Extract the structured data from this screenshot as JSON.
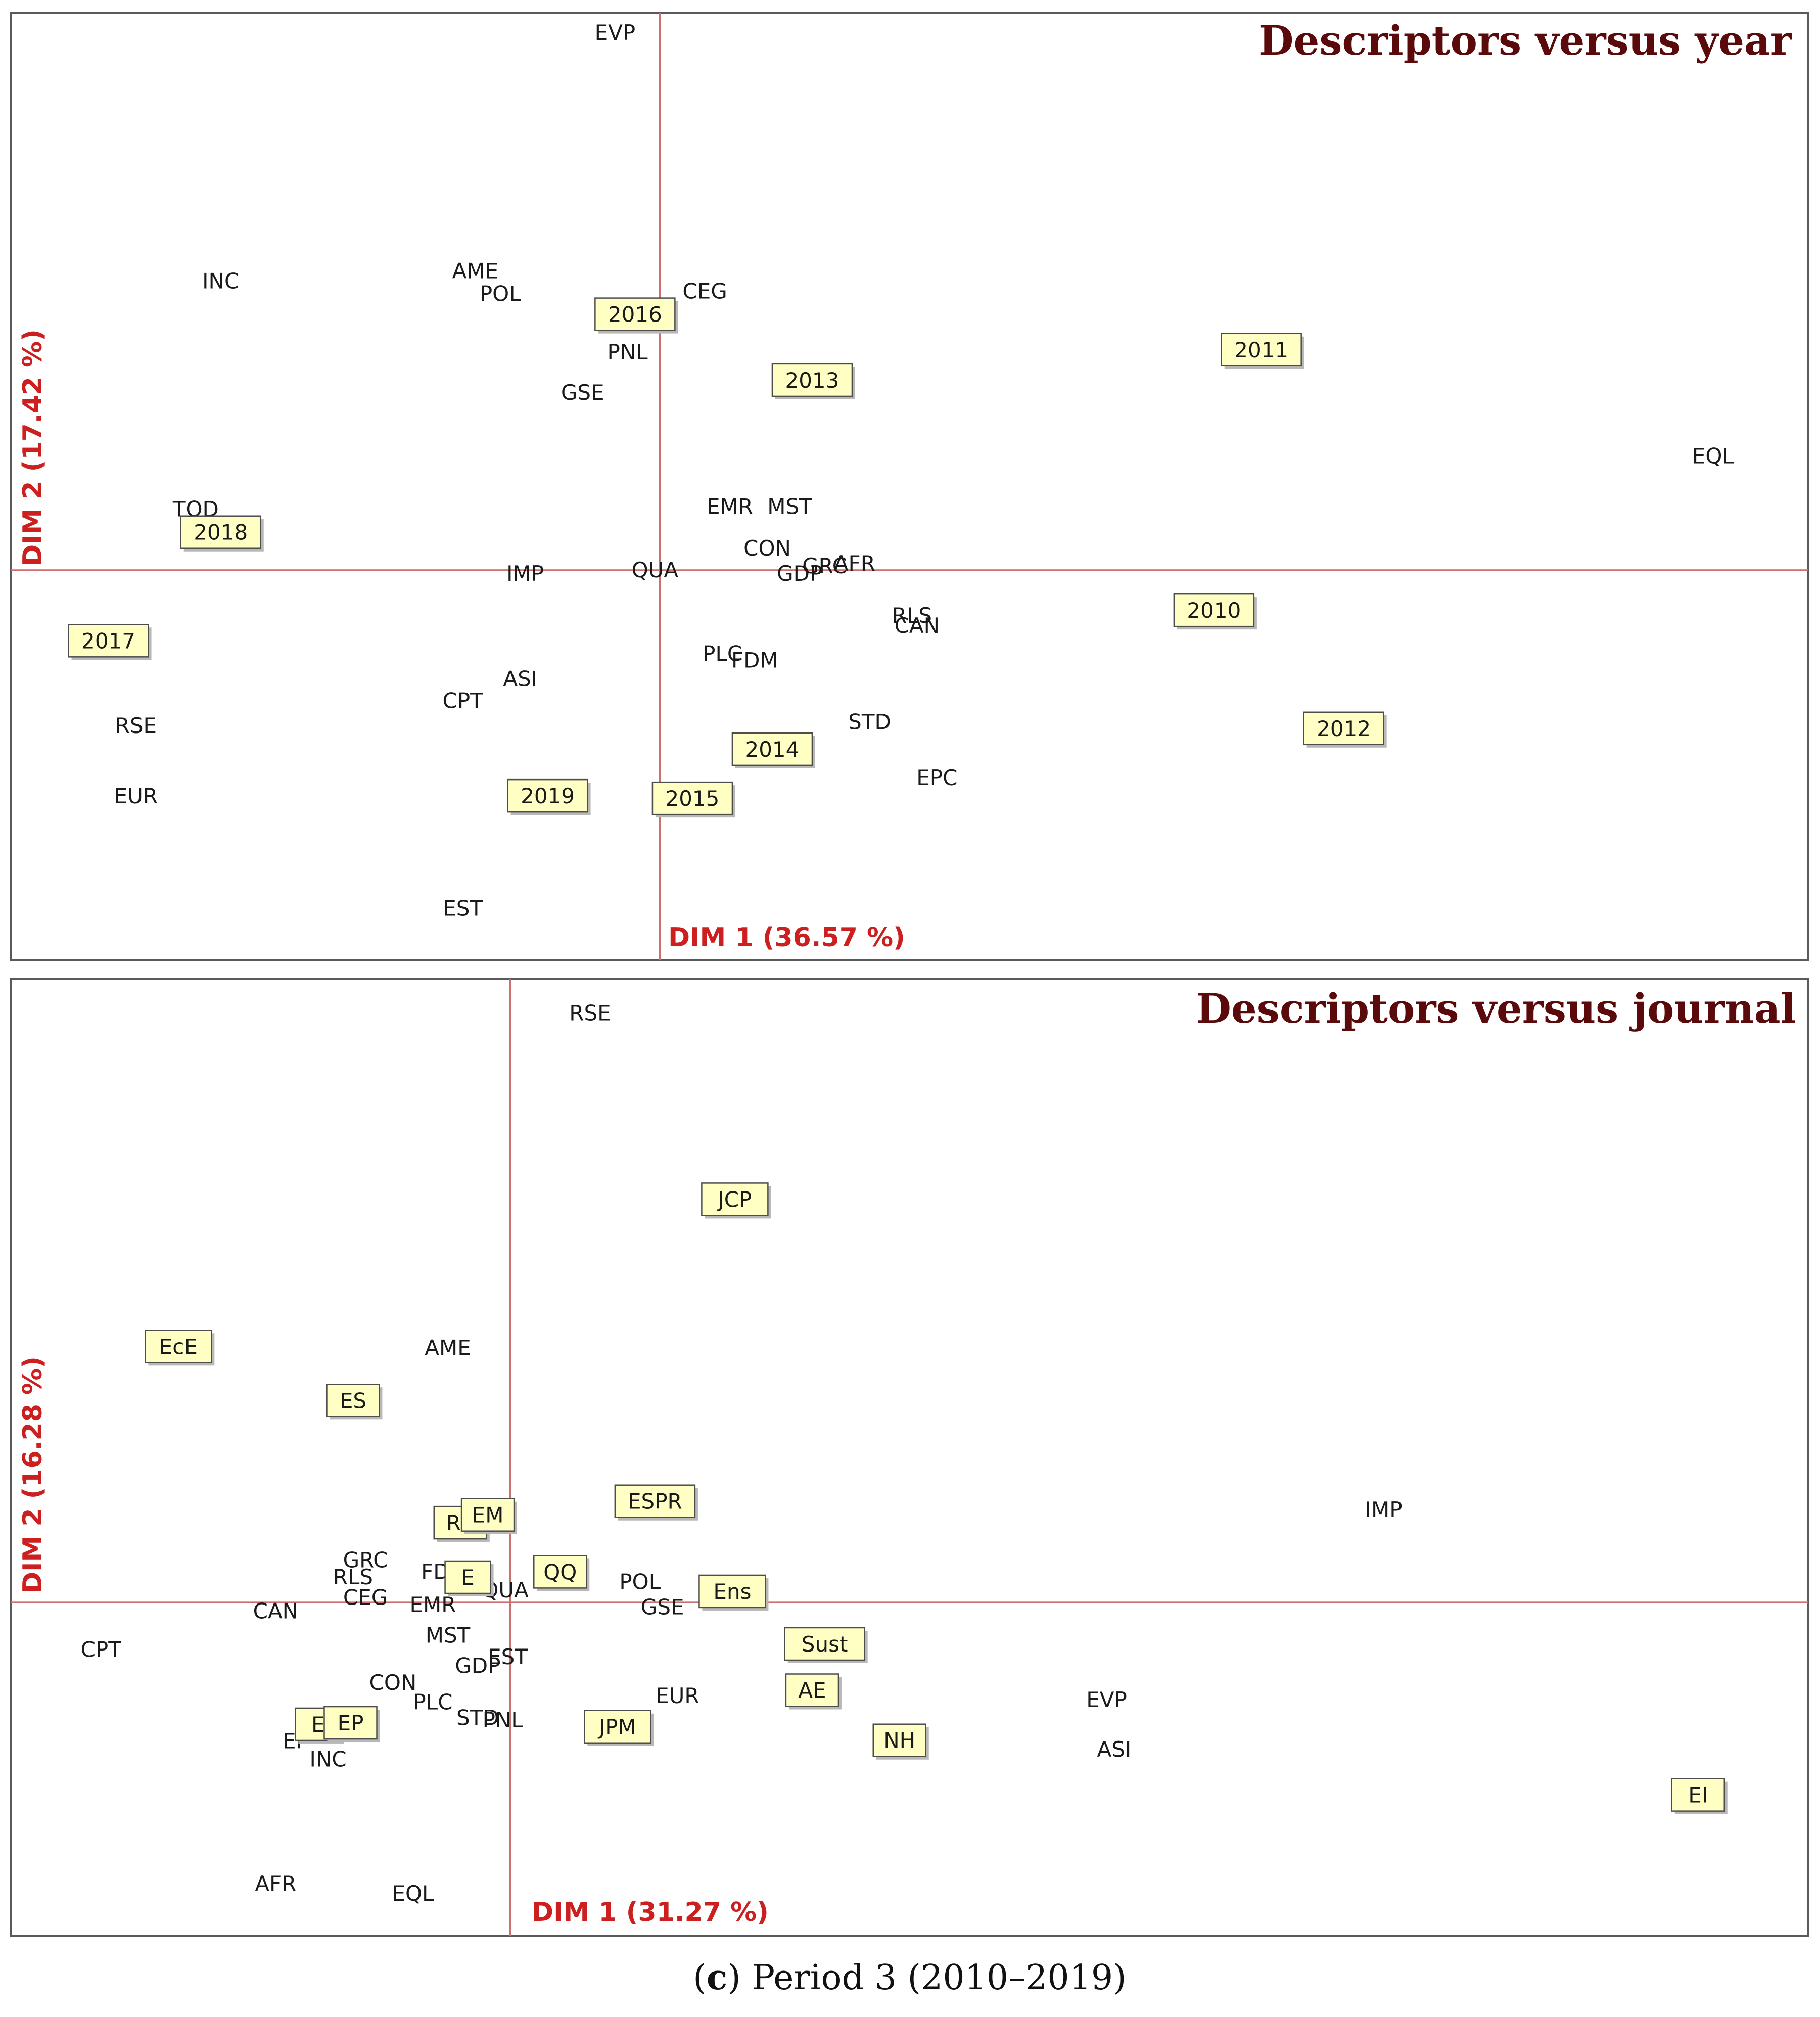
{
  "caption": {
    "prefix": "(",
    "letter": "c",
    "suffix": ") Period 3 (2010–2019)"
  },
  "colors": {
    "axis": "#cc6f6f",
    "axis_label": "#cc1f1f",
    "title": "#5a0a0a",
    "box_fill": "#ffffc4"
  },
  "chart_data": [
    {
      "type": "scatter",
      "title": "Descriptors versus year",
      "xlabel": "DIM 1 (36.57 %)",
      "ylabel": "DIM 2 (17.42 %)",
      "xlim": [
        -1.3,
        2.3
      ],
      "ylim": [
        -0.77,
        1.1
      ],
      "descriptors": [
        {
          "label": "EVP",
          "x": -0.09,
          "y": 1.06
        },
        {
          "label": "INC",
          "x": -0.88,
          "y": 0.57
        },
        {
          "label": "AME",
          "x": -0.37,
          "y": 0.59
        },
        {
          "label": "POL",
          "x": -0.32,
          "y": 0.545
        },
        {
          "label": "CEG",
          "x": 0.09,
          "y": 0.55
        },
        {
          "label": "PNL",
          "x": -0.065,
          "y": 0.43
        },
        {
          "label": "GSE",
          "x": -0.155,
          "y": 0.35
        },
        {
          "label": "EQL",
          "x": 2.11,
          "y": 0.225
        },
        {
          "label": "TOD",
          "x": -0.93,
          "y": 0.12
        },
        {
          "label": "EMR",
          "x": 0.14,
          "y": 0.125
        },
        {
          "label": "MST",
          "x": 0.26,
          "y": 0.125
        },
        {
          "label": "CON",
          "x": 0.215,
          "y": 0.043
        },
        {
          "label": "GRC",
          "x": 0.33,
          "y": 0.008
        },
        {
          "label": "AFR",
          "x": 0.39,
          "y": 0.013
        },
        {
          "label": "GDP",
          "x": 0.28,
          "y": -0.007
        },
        {
          "label": "QUA",
          "x": -0.01,
          "y": 0.0
        },
        {
          "label": "IMP",
          "x": -0.27,
          "y": -0.007
        },
        {
          "label": "RLS",
          "x": 0.505,
          "y": -0.09
        },
        {
          "label": "CAN",
          "x": 0.515,
          "y": -0.11
        },
        {
          "label": "PLC",
          "x": 0.125,
          "y": -0.165
        },
        {
          "label": "FDM",
          "x": 0.19,
          "y": -0.178
        },
        {
          "label": "ASI",
          "x": -0.28,
          "y": -0.215
        },
        {
          "label": "CPT",
          "x": -0.395,
          "y": -0.258
        },
        {
          "label": "RSE",
          "x": -1.05,
          "y": -0.307
        },
        {
          "label": "STD",
          "x": 0.42,
          "y": -0.3
        },
        {
          "label": "EPC",
          "x": 0.555,
          "y": -0.41
        },
        {
          "label": "EUR",
          "x": -1.05,
          "y": -0.446
        },
        {
          "label": "EST",
          "x": -0.395,
          "y": -0.668
        }
      ],
      "years": [
        {
          "label": "2016",
          "x": -0.05,
          "y": 0.505
        },
        {
          "label": "2013",
          "x": 0.305,
          "y": 0.375
        },
        {
          "label": "2011",
          "x": 1.205,
          "y": 0.435
        },
        {
          "label": "2018",
          "x": -0.88,
          "y": 0.075
        },
        {
          "label": "2017",
          "x": -1.105,
          "y": -0.139
        },
        {
          "label": "2010",
          "x": 1.11,
          "y": -0.079
        },
        {
          "label": "2012",
          "x": 1.37,
          "y": -0.312
        },
        {
          "label": "2014",
          "x": 0.225,
          "y": -0.353
        },
        {
          "label": "2019",
          "x": -0.225,
          "y": -0.445
        },
        {
          "label": "2015",
          "x": 0.065,
          "y": -0.45
        }
      ]
    },
    {
      "type": "scatter",
      "title": "Descriptors versus journal",
      "xlabel": "DIM 1 (31.27 %)",
      "ylabel": "DIM 2 (16.28 %)",
      "xlim": [
        -1.0,
        2.6
      ],
      "ylim": [
        -0.685,
        1.28
      ],
      "descriptors": [
        {
          "label": "RSE",
          "x": 0.16,
          "y": 1.21
        },
        {
          "label": "AME",
          "x": -0.125,
          "y": 0.523
        },
        {
          "label": "IMP",
          "x": 1.75,
          "y": 0.19
        },
        {
          "label": "GRC",
          "x": -0.29,
          "y": 0.087
        },
        {
          "label": "RLS",
          "x": -0.315,
          "y": 0.052
        },
        {
          "label": "CEG",
          "x": -0.29,
          "y": 0.01
        },
        {
          "label": "FD",
          "x": -0.15,
          "y": 0.063
        },
        {
          "label": "QUA",
          "x": -0.01,
          "y": 0.025
        },
        {
          "label": "POL",
          "x": 0.26,
          "y": 0.042
        },
        {
          "label": "GSE",
          "x": 0.305,
          "y": -0.01
        },
        {
          "label": "CAN",
          "x": -0.47,
          "y": -0.018
        },
        {
          "label": "EMR",
          "x": -0.155,
          "y": -0.005
        },
        {
          "label": "MST",
          "x": -0.125,
          "y": -0.068
        },
        {
          "label": "CPT",
          "x": -0.82,
          "y": -0.097
        },
        {
          "label": "GDP",
          "x": -0.065,
          "y": -0.13
        },
        {
          "label": "EST",
          "x": -0.005,
          "y": -0.112
        },
        {
          "label": "CON",
          "x": -0.235,
          "y": -0.165
        },
        {
          "label": "PLC",
          "x": -0.155,
          "y": -0.205
        },
        {
          "label": "STD",
          "x": -0.065,
          "y": -0.237
        },
        {
          "label": "PNL",
          "x": -0.015,
          "y": -0.242
        },
        {
          "label": "EUR",
          "x": 0.335,
          "y": -0.192
        },
        {
          "label": "EVP",
          "x": 1.195,
          "y": -0.2
        },
        {
          "label": "ASI",
          "x": 1.21,
          "y": -0.302
        },
        {
          "label": "EP",
          "x": -0.43,
          "y": -0.285
        },
        {
          "label": "INC",
          "x": -0.365,
          "y": -0.322
        },
        {
          "label": "AFR",
          "x": -0.47,
          "y": -0.578
        },
        {
          "label": "EQL",
          "x": -0.195,
          "y": -0.598
        }
      ],
      "journals": [
        {
          "label": "JCP",
          "x": 0.45,
          "y": 0.828
        },
        {
          "label": "EcE",
          "x": -0.665,
          "y": 0.526
        },
        {
          "label": "ES",
          "x": -0.315,
          "y": 0.415
        },
        {
          "label": "RS",
          "x": -0.1,
          "y": 0.164
        },
        {
          "label": "EM",
          "x": -0.045,
          "y": 0.18
        },
        {
          "label": "ESPR",
          "x": 0.29,
          "y": 0.208
        },
        {
          "label": "E",
          "x": -0.085,
          "y": 0.052
        },
        {
          "label": "QQ",
          "x": 0.1,
          "y": 0.063
        },
        {
          "label": "Ens",
          "x": 0.445,
          "y": 0.023
        },
        {
          "label": "Sust",
          "x": 0.63,
          "y": -0.085
        },
        {
          "label": "AE",
          "x": 0.605,
          "y": -0.18
        },
        {
          "label": "E",
          "x": -0.385,
          "y": -0.25
        },
        {
          "label": "EP",
          "x": -0.32,
          "y": -0.247
        },
        {
          "label": "JPM",
          "x": 0.215,
          "y": -0.255
        },
        {
          "label": "NH",
          "x": 0.78,
          "y": -0.283
        },
        {
          "label": "EI",
          "x": 2.38,
          "y": -0.395
        }
      ]
    }
  ]
}
